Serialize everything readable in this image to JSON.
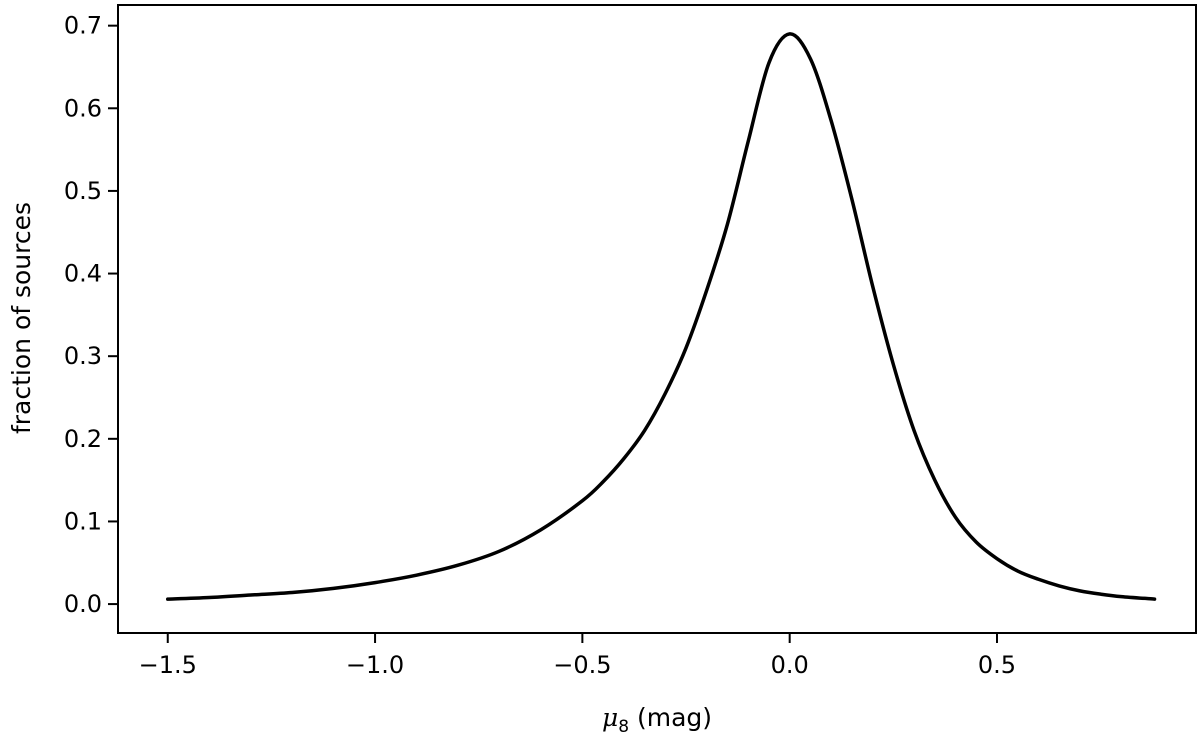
{
  "chart_data": {
    "type": "line",
    "title": "",
    "xlabel_symbol": "μ",
    "xlabel_subscript": "8",
    "xlabel_unit": " (mag)",
    "ylabel": "fraction of sources",
    "xlim": [
      -1.62,
      0.98
    ],
    "ylim": [
      -0.035,
      0.725
    ],
    "grid": false,
    "legend": "none",
    "line_color": "#000000",
    "xticks": [
      {
        "value": -1.5,
        "label": "−1.5"
      },
      {
        "value": -1.0,
        "label": "−1.0"
      },
      {
        "value": -0.5,
        "label": "−0.5"
      },
      {
        "value": 0.0,
        "label": "0.0"
      },
      {
        "value": 0.5,
        "label": "0.5"
      }
    ],
    "yticks": [
      {
        "value": 0.0,
        "label": "0.0"
      },
      {
        "value": 0.1,
        "label": "0.1"
      },
      {
        "value": 0.2,
        "label": "0.2"
      },
      {
        "value": 0.3,
        "label": "0.3"
      },
      {
        "value": 0.4,
        "label": "0.4"
      },
      {
        "value": 0.5,
        "label": "0.5"
      },
      {
        "value": 0.6,
        "label": "0.6"
      },
      {
        "value": 0.7,
        "label": "0.7"
      }
    ],
    "series": [
      {
        "x": [
          -1.5,
          -1.4,
          -1.3,
          -1.2,
          -1.1,
          -1.0,
          -0.9,
          -0.8,
          -0.7,
          -0.6,
          -0.5,
          -0.45,
          -0.4,
          -0.35,
          -0.3,
          -0.25,
          -0.2,
          -0.15,
          -0.1,
          -0.05,
          0.0,
          0.05,
          0.1,
          0.15,
          0.2,
          0.25,
          0.3,
          0.35,
          0.4,
          0.45,
          0.5,
          0.55,
          0.6,
          0.65,
          0.7,
          0.75,
          0.8,
          0.88
        ],
        "y": [
          0.006,
          0.008,
          0.011,
          0.014,
          0.019,
          0.026,
          0.035,
          0.047,
          0.064,
          0.09,
          0.125,
          0.148,
          0.176,
          0.21,
          0.255,
          0.31,
          0.38,
          0.46,
          0.56,
          0.655,
          0.69,
          0.66,
          0.585,
          0.49,
          0.385,
          0.29,
          0.21,
          0.15,
          0.105,
          0.075,
          0.055,
          0.04,
          0.03,
          0.022,
          0.016,
          0.012,
          0.009,
          0.006
        ]
      }
    ]
  }
}
